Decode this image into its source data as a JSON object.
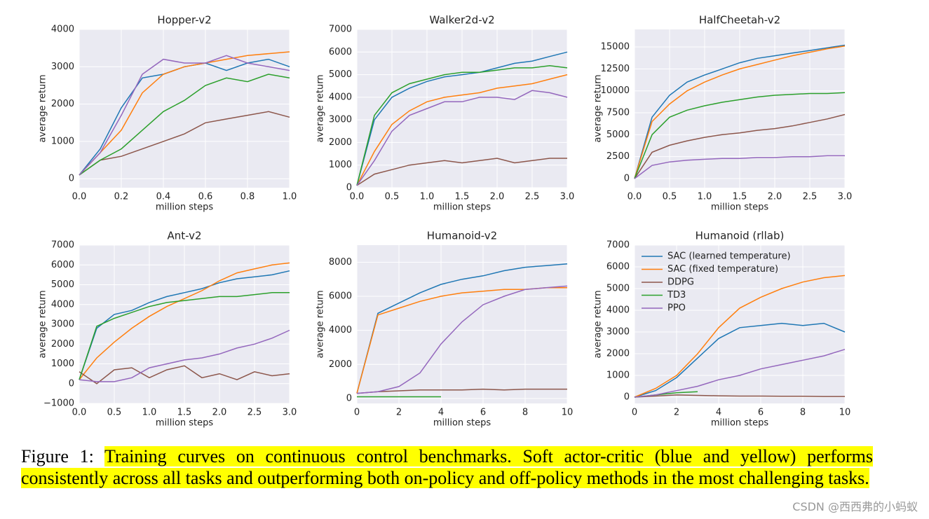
{
  "chart_data": [
    {
      "type": "line",
      "title": "Hopper-v2",
      "xlabel": "million steps",
      "ylabel": "average return",
      "x": [
        0,
        0.1,
        0.2,
        0.3,
        0.4,
        0.5,
        0.6,
        0.7,
        0.8,
        0.9,
        1
      ],
      "xlim": [
        0,
        1
      ],
      "xticks": [
        {
          "value": 0,
          "label": "0.0"
        },
        0.2,
        0.4,
        0.6,
        0.8,
        {
          "value": 1,
          "label": "1.0"
        }
      ],
      "ylim": [
        -240,
        4000
      ],
      "yticks": [
        0,
        1000,
        2000,
        3000,
        4000
      ],
      "grid": true,
      "series": [
        {
          "color": "#1f77b4",
          "values": [
            100,
            800,
            1900,
            2700,
            2800,
            3000,
            3100,
            2900,
            3100,
            3200,
            3000
          ]
        },
        {
          "color": "#ff7f0e",
          "values": [
            100,
            700,
            1300,
            2300,
            2800,
            3000,
            3100,
            3200,
            3300,
            3350,
            3400
          ]
        },
        {
          "color": "#8c564b",
          "values": [
            100,
            500,
            600,
            800,
            1000,
            1200,
            1500,
            1600,
            1700,
            1800,
            1650
          ]
        },
        {
          "color": "#2ca02c",
          "values": [
            100,
            500,
            800,
            1300,
            1800,
            2100,
            2500,
            2700,
            2600,
            2800,
            2700
          ]
        },
        {
          "color": "#9467bd",
          "values": [
            100,
            700,
            1700,
            2800,
            3200,
            3100,
            3100,
            3300,
            3100,
            3000,
            2900
          ]
        }
      ]
    },
    {
      "type": "line",
      "title": "Walker2d-v2",
      "xlabel": "million steps",
      "ylabel": "average return",
      "x": [
        0,
        0.25,
        0.5,
        0.75,
        1,
        1.25,
        1.5,
        1.75,
        2,
        2.25,
        2.5,
        2.75,
        3
      ],
      "xlim": [
        0,
        3
      ],
      "xticks": [
        {
          "value": 0,
          "label": "0.0"
        },
        0.5,
        {
          "value": 1,
          "label": "1.0"
        },
        1.5,
        {
          "value": 2,
          "label": "2.0"
        },
        2.5,
        {
          "value": 3,
          "label": "3.0"
        }
      ],
      "ylim": [
        0,
        7000
      ],
      "yticks": [
        0,
        1000,
        2000,
        3000,
        4000,
        5000,
        6000,
        7000
      ],
      "grid": true,
      "series": [
        {
          "color": "#1f77b4",
          "values": [
            100,
            3000,
            4000,
            4400,
            4700,
            4900,
            5000,
            5100,
            5300,
            5500,
            5600,
            5800,
            6000
          ]
        },
        {
          "color": "#ff7f0e",
          "values": [
            100,
            1600,
            2800,
            3400,
            3800,
            4000,
            4100,
            4200,
            4400,
            4500,
            4600,
            4800,
            5000
          ]
        },
        {
          "color": "#8c564b",
          "values": [
            100,
            600,
            800,
            1000,
            1100,
            1200,
            1100,
            1200,
            1300,
            1100,
            1200,
            1300,
            1300
          ]
        },
        {
          "color": "#2ca02c",
          "values": [
            100,
            3200,
            4200,
            4600,
            4800,
            5000,
            5100,
            5100,
            5200,
            5300,
            5300,
            5400,
            5300
          ]
        },
        {
          "color": "#9467bd",
          "values": [
            100,
            1200,
            2500,
            3200,
            3500,
            3800,
            3800,
            4000,
            4000,
            3900,
            4300,
            4200,
            4000
          ]
        }
      ]
    },
    {
      "type": "line",
      "title": "HalfCheetah-v2",
      "xlabel": "million steps",
      "ylabel": "average return",
      "x": [
        0,
        0.25,
        0.5,
        0.75,
        1,
        1.25,
        1.5,
        1.75,
        2,
        2.25,
        2.5,
        2.75,
        3
      ],
      "xlim": [
        0,
        3
      ],
      "xticks": [
        {
          "value": 0,
          "label": "0.0"
        },
        0.5,
        {
          "value": 1,
          "label": "1.0"
        },
        1.5,
        {
          "value": 2,
          "label": "2.0"
        },
        2.5,
        {
          "value": 3,
          "label": "3.0"
        }
      ],
      "ylim": [
        -1040,
        17000
      ],
      "yticks": [
        0,
        2500,
        5000,
        7500,
        10000,
        12500,
        15000
      ],
      "grid": true,
      "series": [
        {
          "color": "#1f77b4",
          "values": [
            0,
            7000,
            9500,
            11000,
            11800,
            12500,
            13200,
            13700,
            14000,
            14300,
            14600,
            14900,
            15200
          ]
        },
        {
          "color": "#ff7f0e",
          "values": [
            0,
            6500,
            8500,
            10000,
            11000,
            11800,
            12500,
            13000,
            13500,
            14000,
            14400,
            14800,
            15100
          ]
        },
        {
          "color": "#8c564b",
          "values": [
            0,
            3000,
            3800,
            4300,
            4700,
            5000,
            5200,
            5500,
            5700,
            6000,
            6400,
            6800,
            7300
          ]
        },
        {
          "color": "#2ca02c",
          "values": [
            0,
            5000,
            7000,
            7800,
            8300,
            8700,
            9000,
            9300,
            9500,
            9600,
            9700,
            9700,
            9800
          ]
        },
        {
          "color": "#9467bd",
          "values": [
            0,
            1500,
            1900,
            2100,
            2200,
            2300,
            2300,
            2400,
            2400,
            2500,
            2500,
            2600,
            2600
          ]
        }
      ]
    },
    {
      "type": "line",
      "title": "Ant-v2",
      "xlabel": "million steps",
      "ylabel": "average return",
      "x": [
        0,
        0.25,
        0.5,
        0.75,
        1,
        1.25,
        1.5,
        1.75,
        2,
        2.25,
        2.5,
        2.75,
        3
      ],
      "xlim": [
        0,
        3
      ],
      "xticks": [
        {
          "value": 0,
          "label": "0.0"
        },
        0.5,
        {
          "value": 1,
          "label": "1.0"
        },
        1.5,
        {
          "value": 2,
          "label": "2.0"
        },
        2.5,
        {
          "value": 3,
          "label": "3.0"
        }
      ],
      "ylim": [
        -1000,
        7000
      ],
      "yticks": [
        {
          "value": -1000,
          "label": "−1000"
        },
        0,
        1000,
        2000,
        3000,
        4000,
        5000,
        6000,
        7000
      ],
      "grid": true,
      "series": [
        {
          "color": "#1f77b4",
          "values": [
            200,
            2800,
            3500,
            3700,
            4100,
            4400,
            4600,
            4800,
            5100,
            5300,
            5400,
            5500,
            5700
          ]
        },
        {
          "color": "#ff7f0e",
          "values": [
            200,
            1300,
            2100,
            2800,
            3400,
            3900,
            4300,
            4700,
            5200,
            5600,
            5800,
            6000,
            6100
          ]
        },
        {
          "color": "#8c564b",
          "values": [
            600,
            0,
            700,
            800,
            300,
            700,
            900,
            300,
            500,
            200,
            600,
            400,
            500
          ]
        },
        {
          "color": "#2ca02c",
          "values": [
            200,
            2900,
            3300,
            3600,
            3900,
            4100,
            4200,
            4300,
            4400,
            4400,
            4500,
            4600,
            4600
          ]
        },
        {
          "color": "#9467bd",
          "values": [
            200,
            100,
            100,
            300,
            800,
            1000,
            1200,
            1300,
            1500,
            1800,
            2000,
            2300,
            2700
          ]
        }
      ]
    },
    {
      "type": "line",
      "title": "Humanoid-v2",
      "xlabel": "million steps",
      "ylabel": "average return",
      "x": [
        0,
        1,
        2,
        3,
        4,
        5,
        6,
        7,
        8,
        9,
        10
      ],
      "xlim": [
        0,
        10
      ],
      "xticks": [
        0,
        2,
        4,
        6,
        8,
        10
      ],
      "ylim": [
        -290,
        9000
      ],
      "yticks": [
        0,
        2000,
        4000,
        6000,
        8000
      ],
      "grid": true,
      "series": [
        {
          "color": "#1f77b4",
          "values": [
            300,
            5000,
            5600,
            6200,
            6700,
            7000,
            7200,
            7500,
            7700,
            7800,
            7900
          ]
        },
        {
          "color": "#ff7f0e",
          "values": [
            300,
            4900,
            5300,
            5700,
            6000,
            6200,
            6300,
            6400,
            6400,
            6500,
            6500
          ]
        },
        {
          "color": "#8c564b",
          "values": [
            300,
            400,
            450,
            500,
            500,
            500,
            550,
            500,
            550,
            550,
            550
          ]
        },
        {
          "color": "#2ca02c",
          "values": [
            100,
            100,
            100,
            100,
            100,
            null,
            null,
            null,
            null,
            null,
            null
          ]
        },
        {
          "color": "#9467bd",
          "values": [
            300,
            400,
            700,
            1500,
            3200,
            4500,
            5500,
            6000,
            6400,
            6500,
            6600
          ]
        }
      ]
    },
    {
      "type": "line",
      "title": "Humanoid (rllab)",
      "xlabel": "million steps",
      "ylabel": "average return",
      "x": [
        0,
        1,
        2,
        3,
        4,
        5,
        6,
        7,
        8,
        9,
        10
      ],
      "xlim": [
        0,
        10
      ],
      "xticks": [
        0,
        2,
        4,
        6,
        8,
        10
      ],
      "ylim": [
        -290,
        7000
      ],
      "yticks": [
        0,
        1000,
        2000,
        3000,
        4000,
        5000,
        6000,
        7000
      ],
      "grid": true,
      "legend": "upper left",
      "series": [
        {
          "name": "SAC (learned temperature)",
          "color": "#1f77b4",
          "values": [
            0,
            300,
            900,
            1800,
            2700,
            3200,
            3300,
            3400,
            3300,
            3400,
            3000
          ]
        },
        {
          "name": "SAC (fixed temperature)",
          "color": "#ff7f0e",
          "values": [
            0,
            400,
            1000,
            2000,
            3200,
            4100,
            4600,
            5000,
            5300,
            5500,
            5600
          ]
        },
        {
          "name": "DDPG",
          "color": "#8c564b",
          "values": [
            0,
            50,
            100,
            80,
            60,
            50,
            50,
            40,
            40,
            30,
            30
          ]
        },
        {
          "name": "TD3",
          "color": "#2ca02c",
          "values": [
            0,
            100,
            200,
            250,
            null,
            null,
            null,
            null,
            null,
            null,
            null
          ]
        },
        {
          "name": "PPO",
          "color": "#9467bd",
          "values": [
            0,
            100,
            300,
            500,
            800,
            1000,
            1300,
            1500,
            1700,
            1900,
            2200
          ]
        }
      ]
    }
  ],
  "caption": {
    "label": "Figure 1:",
    "text": "Training curves on continuous control benchmarks. Soft actor-critic (blue and yellow) performs consistently across all tasks and outperforming both on-policy and off-policy methods in the most challenging tasks."
  },
  "watermark": "CSDN @西西弗的小蚂蚁"
}
